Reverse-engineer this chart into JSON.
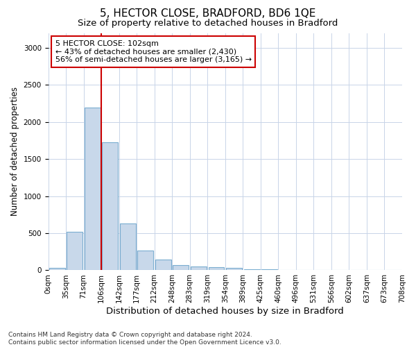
{
  "title": "5, HECTOR CLOSE, BRADFORD, BD6 1QE",
  "subtitle": "Size of property relative to detached houses in Bradford",
  "xlabel": "Distribution of detached houses by size in Bradford",
  "ylabel": "Number of detached properties",
  "bar_values": [
    30,
    520,
    2190,
    1730,
    630,
    270,
    140,
    70,
    55,
    45,
    30,
    15,
    10,
    5,
    5,
    5,
    5,
    0,
    0,
    5
  ],
  "bin_labels": [
    "0sqm",
    "35sqm",
    "71sqm",
    "106sqm",
    "142sqm",
    "177sqm",
    "212sqm",
    "248sqm",
    "283sqm",
    "319sqm",
    "354sqm",
    "389sqm",
    "425sqm",
    "460sqm",
    "496sqm",
    "531sqm",
    "566sqm",
    "602sqm",
    "637sqm",
    "673sqm",
    "708sqm"
  ],
  "bar_color": "#c8d8ea",
  "bar_edge_color": "#7aadd0",
  "bar_edge_width": 0.8,
  "grid_color": "#c8d4e8",
  "background_color": "#ffffff",
  "property_line_color": "#cc0000",
  "property_line_bin_index": 3,
  "annotation_text": "5 HECTOR CLOSE: 102sqm\n← 43% of detached houses are smaller (2,430)\n56% of semi-detached houses are larger (3,165) →",
  "annotation_box_color": "#ffffff",
  "annotation_box_edge_color": "#cc0000",
  "ylim": [
    0,
    3200
  ],
  "yticks": [
    0,
    500,
    1000,
    1500,
    2000,
    2500,
    3000
  ],
  "title_fontsize": 11,
  "subtitle_fontsize": 9.5,
  "xlabel_fontsize": 9.5,
  "ylabel_fontsize": 8.5,
  "tick_fontsize": 7.5,
  "annotation_fontsize": 8,
  "footnote_fontsize": 6.5,
  "footnote": "Contains HM Land Registry data © Crown copyright and database right 2024.\nContains public sector information licensed under the Open Government Licence v3.0."
}
